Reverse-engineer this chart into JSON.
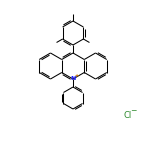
{
  "bg_color": "#ffffff",
  "line_color": "#000000",
  "N_color": "#1a1aff",
  "Cl_color": "#2e8b2e",
  "plus_color": "#cc7700",
  "figsize": [
    1.52,
    1.52
  ],
  "dpi": 100
}
